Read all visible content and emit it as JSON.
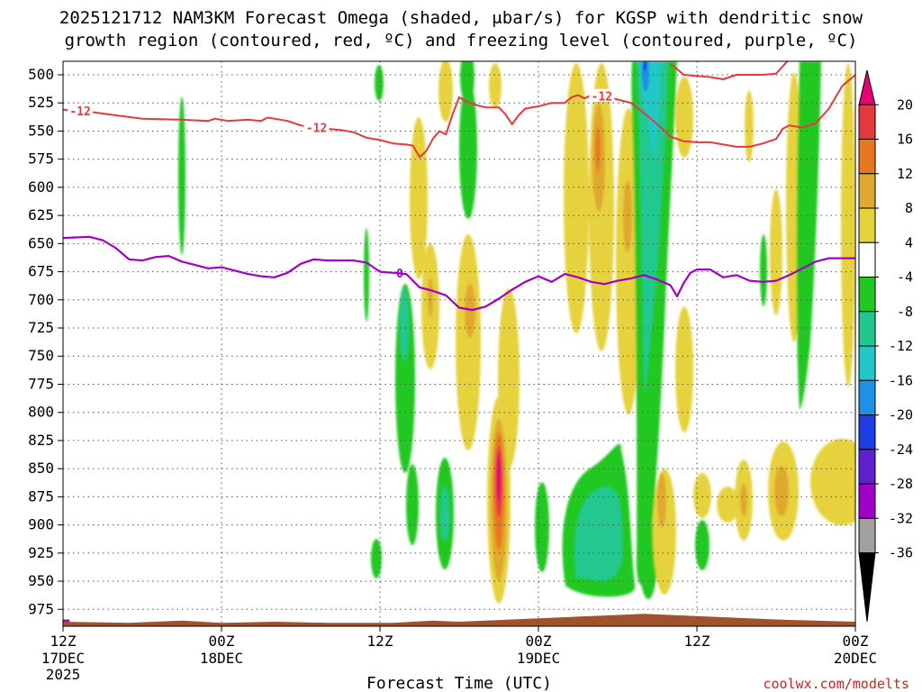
{
  "title": {
    "line1": "2025121712 NAM3KM Forecast Omega (shaded, μbar/s) for KGSP with dendritic snow",
    "line2": "growth region (contoured, red, ºC) and freezing level (contoured, purple, ºC)"
  },
  "credit": "coolwx.com/modelts",
  "chart_data": {
    "type": "heatmap",
    "xlabel": "Forecast Time (UTC)",
    "ylabel": "",
    "x_range_hours": [
      0,
      60
    ],
    "y_range_hpa": [
      488,
      990
    ],
    "y_ticks": [
      "500",
      "525",
      "550",
      "575",
      "600",
      "625",
      "650",
      "675",
      "700",
      "725",
      "750",
      "775",
      "800",
      "825",
      "850",
      "875",
      "900",
      "925",
      "950",
      "975"
    ],
    "x_ticks": [
      {
        "hour": 0,
        "l1": "12Z",
        "l2": "17DEC",
        "l3": "2025"
      },
      {
        "hour": 12,
        "l1": "00Z",
        "l2": "18DEC",
        "l3": ""
      },
      {
        "hour": 24,
        "l1": "12Z",
        "l2": "",
        "l3": ""
      },
      {
        "hour": 36,
        "l1": "00Z",
        "l2": "19DEC",
        "l3": ""
      },
      {
        "hour": 48,
        "l1": "12Z",
        "l2": "",
        "l3": ""
      },
      {
        "hour": 60,
        "l1": "00Z",
        "l2": "20DEC",
        "l3": ""
      }
    ],
    "grid": true,
    "colorbar": {
      "labels": [
        "20",
        "16",
        "12",
        "8",
        "4",
        "-4",
        "-8",
        "-12",
        "-16",
        "-20",
        "-24",
        "-28",
        "-32",
        "-36"
      ],
      "colors": [
        "#e60073",
        "#e8383f",
        "#e8781e",
        "#e0a82e",
        "#e6d23c",
        "#ffffff",
        "#20c820",
        "#20c890",
        "#20c8c8",
        "#1e90e6",
        "#1e3ce6",
        "#6020d0",
        "#a000c8",
        "#a0a0a0",
        "#000000"
      ]
    },
    "contours": {
      "dgz_label": "-12",
      "dgz_color": "#e8383f",
      "dgz_top": [
        [
          0,
          531
        ],
        [
          1.5,
          532
        ],
        [
          4,
          536
        ],
        [
          6,
          539
        ],
        [
          9,
          540
        ],
        [
          11,
          541
        ],
        [
          11.5,
          539
        ],
        [
          12.5,
          541
        ],
        [
          14,
          540
        ],
        [
          15,
          541
        ],
        [
          15.5,
          538
        ],
        [
          17,
          541
        ],
        [
          18,
          545
        ],
        [
          19,
          547
        ],
        [
          20,
          548
        ],
        [
          21,
          549
        ],
        [
          22,
          551
        ],
        [
          23,
          556
        ],
        [
          24,
          558
        ],
        [
          25,
          561
        ],
        [
          26,
          562
        ],
        [
          26.5,
          563
        ],
        [
          27,
          573
        ],
        [
          27.5,
          568
        ],
        [
          28,
          557
        ],
        [
          28.5,
          550
        ],
        [
          29,
          553
        ],
        [
          29.5,
          535
        ],
        [
          30,
          520
        ],
        [
          31,
          526
        ],
        [
          32,
          529
        ],
        [
          33,
          529
        ],
        [
          33.5,
          535
        ],
        [
          34,
          544
        ],
        [
          34.5,
          536
        ],
        [
          35,
          530
        ],
        [
          36,
          528
        ],
        [
          37,
          525
        ],
        [
          38,
          525
        ],
        [
          38.5,
          520
        ],
        [
          39,
          518
        ],
        [
          39.5,
          521
        ],
        [
          40,
          518
        ],
        [
          41,
          519
        ],
        [
          42,
          522
        ],
        [
          43,
          525
        ],
        [
          44,
          534
        ],
        [
          45,
          544
        ],
        [
          46,
          555
        ],
        [
          47,
          559
        ],
        [
          48,
          560
        ],
        [
          49,
          560
        ],
        [
          50,
          562
        ],
        [
          51,
          564
        ],
        [
          52,
          564
        ],
        [
          53,
          561
        ],
        [
          54,
          557
        ],
        [
          54.5,
          548
        ],
        [
          55,
          545
        ],
        [
          56,
          547
        ],
        [
          57,
          543
        ],
        [
          58,
          530
        ],
        [
          59,
          510
        ],
        [
          60,
          500
        ]
      ],
      "dgz_bottom": [
        [
          46,
          490
        ],
        [
          47,
          500
        ],
        [
          48,
          501
        ],
        [
          49,
          502
        ],
        [
          50,
          504
        ],
        [
          51,
          500
        ],
        [
          52,
          500
        ],
        [
          53,
          500
        ],
        [
          54,
          499
        ],
        [
          55,
          486
        ]
      ],
      "frz_label": "0",
      "frz_color": "#a000c8",
      "frz": [
        [
          0,
          645
        ],
        [
          2,
          644
        ],
        [
          3,
          647
        ],
        [
          4,
          654
        ],
        [
          5,
          664
        ],
        [
          6,
          665
        ],
        [
          7,
          662
        ],
        [
          8,
          661
        ],
        [
          9,
          666
        ],
        [
          10,
          669
        ],
        [
          11,
          672
        ],
        [
          12,
          671
        ],
        [
          13,
          674
        ],
        [
          14,
          677
        ],
        [
          15,
          679
        ],
        [
          16,
          680
        ],
        [
          17,
          676
        ],
        [
          18,
          668
        ],
        [
          19,
          664
        ],
        [
          20,
          665
        ],
        [
          21,
          665
        ],
        [
          22,
          665
        ],
        [
          23,
          667
        ],
        [
          24,
          675
        ],
        [
          25,
          676
        ],
        [
          26,
          677
        ],
        [
          27,
          689
        ],
        [
          28,
          692
        ],
        [
          29,
          696
        ],
        [
          30,
          707
        ],
        [
          31,
          709
        ],
        [
          32,
          706
        ],
        [
          33,
          699
        ],
        [
          34,
          691
        ],
        [
          35,
          684
        ],
        [
          36,
          679
        ],
        [
          37,
          684
        ],
        [
          38,
          677
        ],
        [
          39,
          680
        ],
        [
          40,
          684
        ],
        [
          41,
          686
        ],
        [
          42,
          683
        ],
        [
          43,
          681
        ],
        [
          44,
          678
        ],
        [
          45,
          682
        ],
        [
          46,
          687
        ],
        [
          46.5,
          697
        ],
        [
          47,
          685
        ],
        [
          47.5,
          676
        ],
        [
          48,
          673
        ],
        [
          49,
          673
        ],
        [
          50,
          680
        ],
        [
          51,
          678
        ],
        [
          52,
          683
        ],
        [
          53,
          684
        ],
        [
          54,
          683
        ],
        [
          55,
          678
        ],
        [
          56,
          672
        ],
        [
          57,
          666
        ],
        [
          58,
          663
        ],
        [
          59,
          663
        ],
        [
          60,
          663
        ]
      ],
      "sfc_color": "#a0522d"
    }
  }
}
